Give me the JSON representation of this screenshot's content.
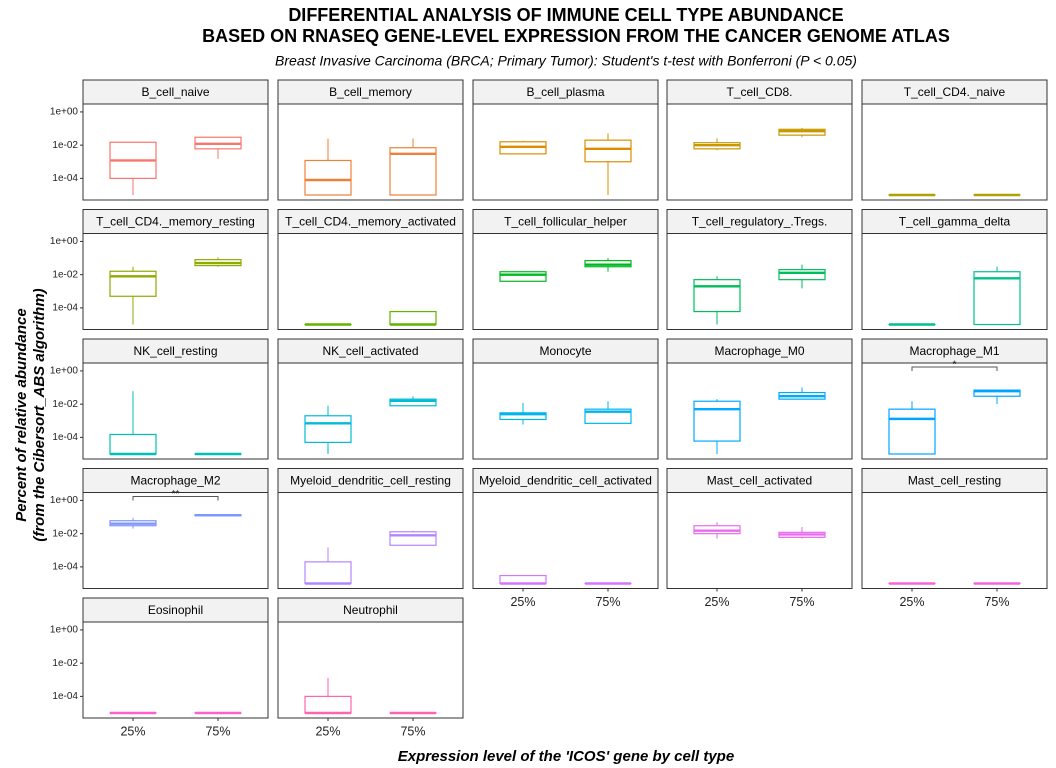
{
  "chart_data": {
    "type": "box",
    "title": [
      "DIFFERENTIAL ANALYSIS OF IMMUNE CELL TYPE ABUNDANCE",
      "BASED ON RNASEQ GENE-LEVEL EXPRESSION FROM THE CANCER GENOME ATLAS"
    ],
    "subtitle": "Breast Invasive Carcinoma (BRCA; Primary Tumor): Student's t-test with Bonferroni (P < 0.05)",
    "x_label": "Expression level of the 'ICOS' gene by cell type",
    "y_label": [
      "Percent of relative abundance",
      "(from the Cibersort_ABS algorithm)"
    ],
    "log_y": true,
    "ylim": [
      5e-06,
      3
    ],
    "yticks": [
      {
        "value": 1,
        "label": "1e+00"
      },
      {
        "value": 0.01,
        "label": "1e-02"
      },
      {
        "value": 0.0001,
        "label": "1e-04"
      }
    ],
    "categories": [
      "25%",
      "75%"
    ],
    "panels": [
      {
        "name": "B_cell_naive",
        "color": "#F8766D",
        "boxes": [
          {
            "min": 1e-05,
            "q1": 0.0001,
            "median": 0.0012,
            "q3": 0.015,
            "max": 0.015
          },
          {
            "min": 0.0015,
            "q1": 0.006,
            "median": 0.012,
            "q3": 0.03,
            "max": 0.03
          }
        ]
      },
      {
        "name": "B_cell_memory",
        "color": "#EC8239",
        "boxes": [
          {
            "min": 1e-05,
            "q1": 1e-05,
            "median": 8e-05,
            "q3": 0.0012,
            "max": 0.025
          },
          {
            "min": 1e-05,
            "q1": 1e-05,
            "median": 0.003,
            "q3": 0.007,
            "max": 0.025
          }
        ]
      },
      {
        "name": "B_cell_plasma",
        "color": "#DB8E00",
        "boxes": [
          {
            "min": 0.003,
            "q1": 0.003,
            "median": 0.008,
            "q3": 0.016,
            "max": 0.018
          },
          {
            "min": 1e-05,
            "q1": 0.001,
            "median": 0.006,
            "q3": 0.02,
            "max": 0.05
          }
        ]
      },
      {
        "name": "T_cell_CD8.",
        "color": "#C79800",
        "boxes": [
          {
            "min": 0.005,
            "q1": 0.006,
            "median": 0.01,
            "q3": 0.014,
            "max": 0.025
          },
          {
            "min": 0.03,
            "q1": 0.04,
            "median": 0.07,
            "q3": 0.09,
            "max": 0.11
          }
        ]
      },
      {
        "name": "T_cell_CD4._naive",
        "color": "#AEA200",
        "boxes": [
          {
            "min": 1e-05,
            "q1": 1e-05,
            "median": 1e-05,
            "q3": 1e-05,
            "max": 1e-05
          },
          {
            "min": 1e-05,
            "q1": 1e-05,
            "median": 1e-05,
            "q3": 1e-05,
            "max": 1e-05
          }
        ]
      },
      {
        "name": "T_cell_CD4._memory_resting",
        "color": "#8EAB00",
        "boxes": [
          {
            "min": 1e-05,
            "q1": 0.0005,
            "median": 0.008,
            "q3": 0.016,
            "max": 0.03
          },
          {
            "min": 0.03,
            "q1": 0.035,
            "median": 0.05,
            "q3": 0.08,
            "max": 0.11
          }
        ]
      },
      {
        "name": "T_cell_CD4._memory_activated",
        "color": "#64B200",
        "boxes": [
          {
            "min": 1e-05,
            "q1": 1e-05,
            "median": 1e-05,
            "q3": 1e-05,
            "max": 1e-05
          },
          {
            "min": 1e-05,
            "q1": 1e-05,
            "median": 1e-05,
            "q3": 6e-05,
            "max": 6e-05
          }
        ]
      },
      {
        "name": "T_cell_follicular_helper",
        "color": "#00B81F",
        "boxes": [
          {
            "min": 0.004,
            "q1": 0.004,
            "median": 0.01,
            "q3": 0.015,
            "max": 0.016
          },
          {
            "min": 0.015,
            "q1": 0.03,
            "median": 0.04,
            "q3": 0.07,
            "max": 0.1
          }
        ]
      },
      {
        "name": "T_cell_regulatory_.Tregs.",
        "color": "#00BD5C",
        "boxes": [
          {
            "min": 1e-05,
            "q1": 6e-05,
            "median": 0.002,
            "q3": 0.005,
            "max": 0.008
          },
          {
            "min": 0.0015,
            "q1": 0.005,
            "median": 0.013,
            "q3": 0.02,
            "max": 0.04
          }
        ]
      },
      {
        "name": "T_cell_gamma_delta",
        "color": "#00C08D",
        "boxes": [
          {
            "min": 1e-05,
            "q1": 1e-05,
            "median": 1e-05,
            "q3": 1e-05,
            "max": 1e-05
          },
          {
            "min": 1e-05,
            "q1": 1e-05,
            "median": 0.006,
            "q3": 0.015,
            "max": 0.03
          }
        ]
      },
      {
        "name": "NK_cell_resting",
        "color": "#00C0B5",
        "boxes": [
          {
            "min": 1e-05,
            "q1": 1e-05,
            "median": 1e-05,
            "q3": 0.00015,
            "max": 0.06
          },
          {
            "min": 1e-05,
            "q1": 1e-05,
            "median": 1e-05,
            "q3": 1e-05,
            "max": 1e-05
          }
        ]
      },
      {
        "name": "NK_cell_activated",
        "color": "#00BCD6",
        "boxes": [
          {
            "min": 1e-05,
            "q1": 5e-05,
            "median": 0.0007,
            "q3": 0.002,
            "max": 0.008
          },
          {
            "min": 0.008,
            "q1": 0.008,
            "median": 0.016,
            "q3": 0.02,
            "max": 0.03
          }
        ]
      },
      {
        "name": "Monocyte",
        "color": "#00B5EE",
        "boxes": [
          {
            "min": 0.0006,
            "q1": 0.0012,
            "median": 0.0025,
            "q3": 0.003,
            "max": 0.012
          },
          {
            "min": 0.0007,
            "q1": 0.0007,
            "median": 0.0035,
            "q3": 0.005,
            "max": 0.015
          }
        ]
      },
      {
        "name": "Macrophage_M0",
        "color": "#00ABFD",
        "boxes": [
          {
            "min": 1e-05,
            "q1": 6e-05,
            "median": 0.005,
            "q3": 0.015,
            "max": 0.02
          },
          {
            "min": 0.02,
            "q1": 0.02,
            "median": 0.03,
            "q3": 0.05,
            "max": 0.1
          }
        ]
      },
      {
        "name": "Macrophage_M1",
        "color": "#00A5FF",
        "signif": "*",
        "boxes": [
          {
            "min": 1e-05,
            "q1": 1e-05,
            "median": 0.0013,
            "q3": 0.005,
            "max": 0.015
          },
          {
            "min": 0.01,
            "q1": 0.03,
            "median": 0.06,
            "q3": 0.07,
            "max": 0.07
          }
        ]
      },
      {
        "name": "Macrophage_M2",
        "color": "#7F96FF",
        "signif": "**",
        "boxes": [
          {
            "min": 0.02,
            "q1": 0.03,
            "median": 0.04,
            "q3": 0.06,
            "max": 0.09
          },
          {
            "min": 0.11,
            "q1": 0.12,
            "median": 0.13,
            "q3": 0.14,
            "max": 0.15
          }
        ]
      },
      {
        "name": "Myeloid_dendritic_cell_resting",
        "color": "#B385FF",
        "boxes": [
          {
            "min": 1e-05,
            "q1": 1e-05,
            "median": 1e-05,
            "q3": 0.0002,
            "max": 0.0015
          },
          {
            "min": 0.002,
            "q1": 0.002,
            "median": 0.008,
            "q3": 0.013,
            "max": 0.015
          }
        ]
      },
      {
        "name": "Myeloid_dendritic_cell_activated",
        "color": "#D575FE",
        "boxes": [
          {
            "min": 1e-05,
            "q1": 1e-05,
            "median": 1e-05,
            "q3": 3e-05,
            "max": 3e-05
          },
          {
            "min": 1e-05,
            "q1": 1e-05,
            "median": 1e-05,
            "q3": 1e-05,
            "max": 1e-05
          }
        ]
      },
      {
        "name": "Mast_cell_activated",
        "color": "#E96BF0",
        "boxes": [
          {
            "min": 0.005,
            "q1": 0.01,
            "median": 0.015,
            "q3": 0.03,
            "max": 0.05
          },
          {
            "min": 0.005,
            "q1": 0.006,
            "median": 0.009,
            "q3": 0.012,
            "max": 0.025
          }
        ]
      },
      {
        "name": "Mast_cell_resting",
        "color": "#F763DE",
        "boxes": [
          {
            "min": 1e-05,
            "q1": 1e-05,
            "median": 1e-05,
            "q3": 1e-05,
            "max": 1e-05
          },
          {
            "min": 1e-05,
            "q1": 1e-05,
            "median": 1e-05,
            "q3": 1e-05,
            "max": 1e-05
          }
        ]
      },
      {
        "name": "Eosinophil",
        "color": "#FF61C7",
        "boxes": [
          {
            "min": 1e-05,
            "q1": 1e-05,
            "median": 1e-05,
            "q3": 1e-05,
            "max": 1e-05
          },
          {
            "min": 1e-05,
            "q1": 1e-05,
            "median": 1e-05,
            "q3": 1e-05,
            "max": 1e-05
          }
        ]
      },
      {
        "name": "Neutrophil",
        "color": "#FF64B0",
        "boxes": [
          {
            "min": 1e-05,
            "q1": 1e-05,
            "median": 1e-05,
            "q3": 0.0001,
            "max": 0.0013
          },
          {
            "min": 1e-05,
            "q1": 1e-05,
            "median": 1e-05,
            "q3": 1e-05,
            "max": 1e-05
          }
        ]
      }
    ]
  }
}
